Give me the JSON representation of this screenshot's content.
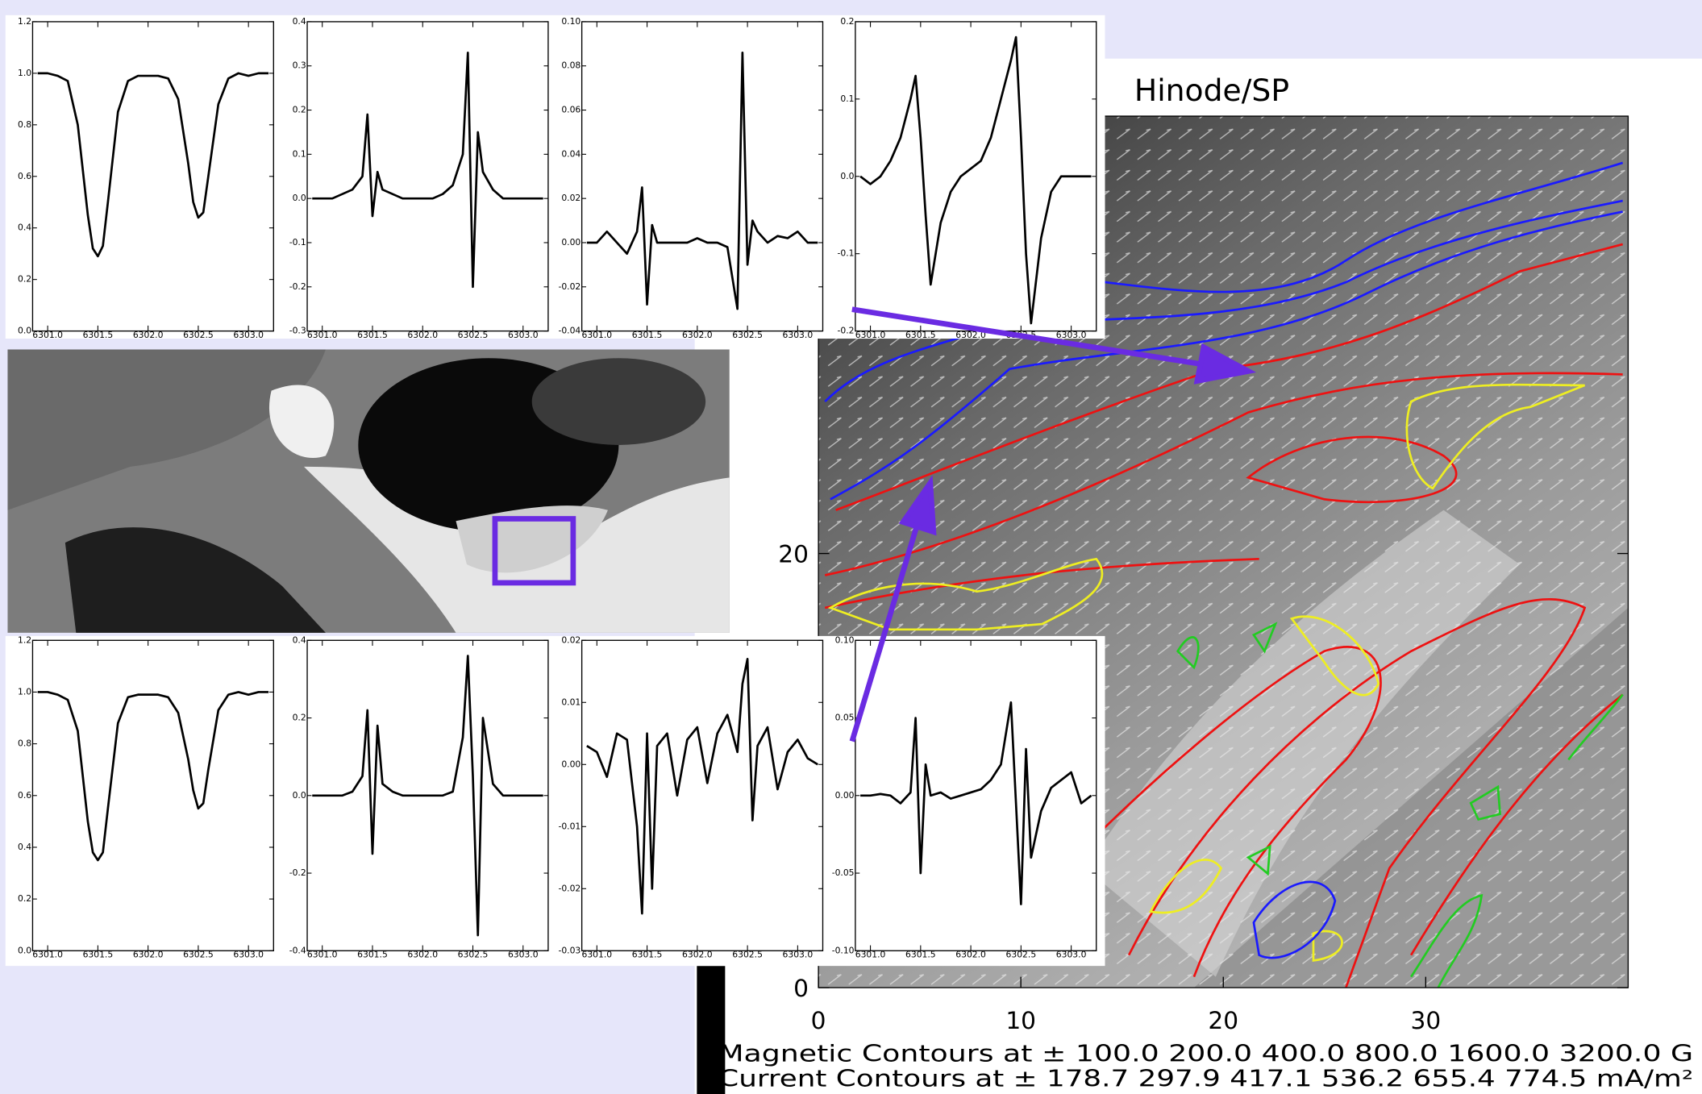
{
  "chart_data": [
    {
      "type": "line",
      "color": "#000000",
      "x": [
        6300.9,
        6301,
        6301.1,
        6301.2,
        6301.3,
        6301.4,
        6301.45,
        6301.5,
        6301.55,
        6301.6,
        6301.7,
        6301.8,
        6301.9,
        6302,
        6302.1,
        6302.2,
        6302.3,
        6302.4,
        6302.45,
        6302.5,
        6302.55,
        6302.6,
        6302.7,
        6302.8,
        6302.9,
        6303,
        6303.1,
        6303.2
      ],
      "values": [
        1.0,
        1.0,
        0.99,
        0.97,
        0.8,
        0.45,
        0.32,
        0.29,
        0.33,
        0.5,
        0.85,
        0.97,
        0.99,
        0.99,
        0.99,
        0.98,
        0.9,
        0.65,
        0.5,
        0.44,
        0.46,
        0.6,
        0.88,
        0.98,
        1.0,
        0.99,
        1.0,
        1.0
      ],
      "xlim": [
        6300.85,
        6303.25
      ],
      "xticks": [
        {
          "value": 6301,
          "label": "6301.0"
        },
        6301.5,
        {
          "value": 6302,
          "label": "6302.0"
        },
        6302.5,
        {
          "value": 6303,
          "label": "6303.0"
        }
      ],
      "ylim": [
        0,
        1.2
      ],
      "yticks": [
        {
          "value": 0,
          "label": "0.0"
        },
        0.2,
        0.4,
        0.6,
        0.8,
        {
          "value": 1,
          "label": "1.0"
        },
        1.2
      ]
    },
    {
      "type": "line",
      "color": "#000000",
      "x": [
        6300.9,
        6301,
        6301.1,
        6301.2,
        6301.3,
        6301.4,
        6301.45,
        6301.5,
        6301.55,
        6301.6,
        6301.7,
        6301.8,
        6301.9,
        6302,
        6302.1,
        6302.2,
        6302.3,
        6302.4,
        6302.45,
        6302.5,
        6302.55,
        6302.6,
        6302.7,
        6302.8,
        6302.9,
        6303,
        6303.1,
        6303.2
      ],
      "values": [
        0,
        0,
        0,
        0.01,
        0.02,
        0.05,
        0.19,
        -0.04,
        0.06,
        0.02,
        0.01,
        0,
        0,
        0,
        0,
        0.01,
        0.03,
        0.1,
        0.33,
        -0.2,
        0.15,
        0.06,
        0.02,
        0,
        0,
        0,
        0,
        0
      ],
      "xlim": [
        6300.85,
        6303.25
      ],
      "xticks": [
        {
          "value": 6301,
          "label": "6301.0"
        },
        6301.5,
        {
          "value": 6302,
          "label": "6302.0"
        },
        6302.5,
        {
          "value": 6303,
          "label": "6303.0"
        }
      ],
      "ylim": [
        -0.3,
        0.4
      ],
      "yticks": [
        -0.3,
        -0.2,
        -0.1,
        {
          "value": 0,
          "label": "0.0"
        },
        0.1,
        0.2,
        0.3,
        0.4
      ]
    },
    {
      "type": "line",
      "color": "#000000",
      "x": [
        6300.9,
        6301,
        6301.1,
        6301.2,
        6301.3,
        6301.4,
        6301.45,
        6301.5,
        6301.55,
        6301.6,
        6301.7,
        6301.8,
        6301.9,
        6302,
        6302.1,
        6302.2,
        6302.3,
        6302.4,
        6302.45,
        6302.5,
        6302.55,
        6302.6,
        6302.7,
        6302.8,
        6302.9,
        6303,
        6303.1,
        6303.2
      ],
      "values": [
        0,
        0,
        0.005,
        0,
        -0.005,
        0.005,
        0.025,
        -0.028,
        0.008,
        0,
        0,
        0,
        0,
        0.002,
        0,
        0,
        -0.002,
        -0.03,
        0.086,
        -0.01,
        0.01,
        0.005,
        0,
        0.003,
        0.002,
        0.005,
        0,
        0
      ],
      "xlim": [
        6300.85,
        6303.25
      ],
      "xticks": [
        {
          "value": 6301,
          "label": "6301.0"
        },
        6301.5,
        {
          "value": 6302,
          "label": "6302.0"
        },
        6302.5,
        {
          "value": 6303,
          "label": "6303.0"
        }
      ],
      "ylim": [
        -0.04,
        0.1
      ],
      "yticks": [
        -0.04,
        -0.02,
        {
          "value": 0,
          "label": "0.00"
        },
        0.02,
        0.04,
        0.06,
        0.08,
        {
          "value": 0.1,
          "label": "0.10"
        }
      ]
    },
    {
      "type": "line",
      "color": "#000000",
      "x": [
        6300.9,
        6301,
        6301.1,
        6301.2,
        6301.3,
        6301.4,
        6301.45,
        6301.5,
        6301.55,
        6301.6,
        6301.7,
        6301.8,
        6301.9,
        6302,
        6302.1,
        6302.2,
        6302.3,
        6302.4,
        6302.45,
        6302.5,
        6302.55,
        6302.6,
        6302.7,
        6302.8,
        6302.9,
        6303,
        6303.1,
        6303.2
      ],
      "values": [
        0,
        -0.01,
        0,
        0.02,
        0.05,
        0.1,
        0.13,
        0.05,
        -0.05,
        -0.14,
        -0.06,
        -0.02,
        0,
        0.01,
        0.02,
        0.05,
        0.1,
        0.15,
        0.18,
        0.05,
        -0.1,
        -0.19,
        -0.08,
        -0.02,
        0,
        0,
        0,
        0
      ],
      "xlim": [
        6300.85,
        6303.25
      ],
      "xticks": [
        {
          "value": 6301,
          "label": "6301.0"
        },
        6301.5,
        {
          "value": 6302,
          "label": "6302.0"
        },
        6302.5,
        {
          "value": 6303,
          "label": "6303.0"
        }
      ],
      "ylim": [
        -0.2,
        0.2
      ],
      "yticks": [
        -0.2,
        -0.1,
        {
          "value": 0,
          "label": "0.0"
        },
        0.1,
        0.2
      ]
    },
    {
      "type": "line",
      "color": "#000000",
      "x": [
        6300.9,
        6301,
        6301.1,
        6301.2,
        6301.3,
        6301.4,
        6301.45,
        6301.5,
        6301.55,
        6301.6,
        6301.7,
        6301.8,
        6301.9,
        6302,
        6302.1,
        6302.2,
        6302.3,
        6302.4,
        6302.45,
        6302.5,
        6302.55,
        6302.6,
        6302.7,
        6302.8,
        6302.9,
        6303,
        6303.1,
        6303.2
      ],
      "values": [
        1.0,
        1.0,
        0.99,
        0.97,
        0.85,
        0.5,
        0.38,
        0.35,
        0.38,
        0.55,
        0.88,
        0.98,
        0.99,
        0.99,
        0.99,
        0.98,
        0.92,
        0.74,
        0.62,
        0.55,
        0.57,
        0.7,
        0.93,
        0.99,
        1.0,
        0.99,
        1.0,
        1.0
      ],
      "xlim": [
        6300.85,
        6303.25
      ],
      "xticks": [
        {
          "value": 6301,
          "label": "6301.0"
        },
        6301.5,
        {
          "value": 6302,
          "label": "6302.0"
        },
        6302.5,
        {
          "value": 6303,
          "label": "6303.0"
        }
      ],
      "ylim": [
        0,
        1.2
      ],
      "yticks": [
        {
          "value": 0,
          "label": "0.0"
        },
        0.2,
        0.4,
        0.6,
        0.8,
        {
          "value": 1,
          "label": "1.0"
        },
        1.2
      ]
    },
    {
      "type": "line",
      "color": "#000000",
      "x": [
        6300.9,
        6301,
        6301.1,
        6301.2,
        6301.3,
        6301.4,
        6301.45,
        6301.5,
        6301.55,
        6301.6,
        6301.7,
        6301.8,
        6301.9,
        6302,
        6302.1,
        6302.2,
        6302.3,
        6302.4,
        6302.45,
        6302.5,
        6302.55,
        6302.6,
        6302.7,
        6302.8,
        6302.9,
        6303,
        6303.1,
        6303.2
      ],
      "values": [
        0,
        0,
        0,
        0,
        0.01,
        0.05,
        0.22,
        -0.15,
        0.18,
        0.03,
        0.01,
        0,
        0,
        0,
        0,
        0,
        0.01,
        0.15,
        0.36,
        0.05,
        -0.36,
        0.2,
        0.03,
        0,
        0,
        0,
        0,
        0
      ],
      "xlim": [
        6300.85,
        6303.25
      ],
      "xticks": [
        {
          "value": 6301,
          "label": "6301.0"
        },
        6301.5,
        {
          "value": 6302,
          "label": "6302.0"
        },
        6302.5,
        {
          "value": 6303,
          "label": "6303.0"
        }
      ],
      "ylim": [
        -0.4,
        0.4
      ],
      "yticks": [
        -0.4,
        -0.2,
        {
          "value": 0,
          "label": "0.0"
        },
        0.2,
        0.4
      ]
    },
    {
      "type": "line",
      "color": "#000000",
      "x": [
        6300.9,
        6301,
        6301.1,
        6301.2,
        6301.3,
        6301.4,
        6301.45,
        6301.5,
        6301.55,
        6301.6,
        6301.7,
        6301.8,
        6301.9,
        6302,
        6302.1,
        6302.2,
        6302.3,
        6302.4,
        6302.45,
        6302.5,
        6302.55,
        6302.6,
        6302.7,
        6302.8,
        6302.9,
        6303,
        6303.1,
        6303.2
      ],
      "values": [
        0.003,
        0.002,
        -0.002,
        0.005,
        0.004,
        -0.01,
        -0.024,
        0.005,
        -0.02,
        0.003,
        0.005,
        -0.005,
        0.004,
        0.006,
        -0.003,
        0.005,
        0.008,
        0.002,
        0.013,
        0.017,
        -0.009,
        0.003,
        0.006,
        -0.004,
        0.002,
        0.004,
        0.001,
        0
      ],
      "xlim": [
        6300.85,
        6303.25
      ],
      "xticks": [
        {
          "value": 6301,
          "label": "6301.0"
        },
        6301.5,
        {
          "value": 6302,
          "label": "6302.0"
        },
        6302.5,
        {
          "value": 6303,
          "label": "6303.0"
        }
      ],
      "ylim": [
        -0.03,
        0.02
      ],
      "yticks": [
        -0.03,
        -0.02,
        -0.01,
        {
          "value": 0,
          "label": "0.00"
        },
        0.01,
        0.02
      ]
    },
    {
      "type": "line",
      "color": "#000000",
      "x": [
        6300.9,
        6301,
        6301.1,
        6301.2,
        6301.3,
        6301.4,
        6301.45,
        6301.5,
        6301.55,
        6301.6,
        6301.7,
        6301.8,
        6301.9,
        6302,
        6302.1,
        6302.2,
        6302.3,
        6302.4,
        6302.45,
        6302.5,
        6302.55,
        6302.6,
        6302.7,
        6302.8,
        6302.9,
        6303,
        6303.1,
        6303.2
      ],
      "values": [
        0,
        0,
        0.001,
        0,
        -0.005,
        0.002,
        0.05,
        -0.05,
        0.02,
        0,
        0.002,
        -0.002,
        0,
        0.002,
        0.004,
        0.01,
        0.02,
        0.06,
        -0.005,
        -0.07,
        0.03,
        -0.04,
        -0.01,
        0.005,
        0.01,
        0.015,
        -0.005,
        0
      ],
      "xlim": [
        6300.85,
        6303.25
      ],
      "xticks": [
        {
          "value": 6301,
          "label": "6301.0"
        },
        6301.5,
        {
          "value": 6302,
          "label": "6302.0"
        },
        6302.5,
        {
          "value": 6303,
          "label": "6303.0"
        }
      ],
      "ylim": [
        -0.1,
        0.1
      ],
      "yticks": [
        {
          "value": -0.1,
          "label": "-0.10"
        },
        -0.05,
        {
          "value": 0,
          "label": "0.00"
        },
        0.05,
        {
          "value": 0.1,
          "label": "0.10"
        }
      ]
    },
    {
      "type": "heatmap",
      "title": "Hinode/SP",
      "xlim": [
        0,
        40
      ],
      "xticks": [
        0,
        10,
        20,
        30
      ],
      "ylim": [
        0,
        40
      ],
      "yticks": [
        0,
        20
      ],
      "annotations": [
        "Magnetic Contours at ±  100.0 200.0 400.0 800.0 1600.0 3200.0 G",
        "Current Contours at ± 178.7 297.9 417.1 536.2 655.4 774.5 mA/m²"
      ]
    }
  ]
}
